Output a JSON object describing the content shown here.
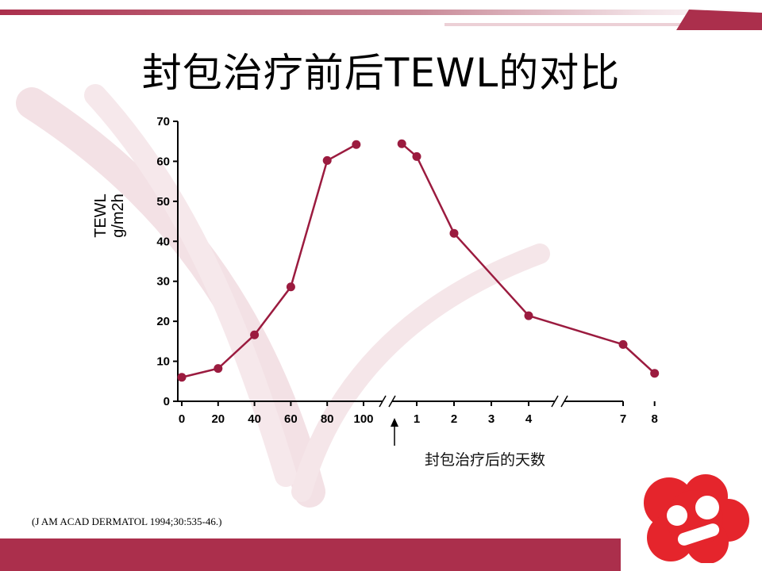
{
  "slide": {
    "title": "封包治疗前后TEWL的对比",
    "citation": "(J AM ACAD DERMATOL 1994;30:535-46.)",
    "x_note": "封包治疗后的天数",
    "accent_color": "#ab2f4c",
    "line_color": "#9b1b3f",
    "logo_color": "#e5252c",
    "logo_icon": "red-cloud-face-logo"
  },
  "chart_data": {
    "type": "line",
    "ylabel_lines": [
      "TEWL",
      "g/m2h"
    ],
    "ylim": [
      0,
      70
    ],
    "y_ticks": [
      "0",
      "10",
      "20",
      "30",
      "40",
      "50",
      "60",
      "70"
    ],
    "grid": false,
    "legend": "none",
    "segments": [
      {
        "x_ticks": [
          "0",
          "20",
          "40",
          "60",
          "80",
          "100"
        ],
        "x": [
          0,
          20,
          40,
          60,
          80,
          96
        ],
        "y": [
          6,
          8.2,
          16.6,
          28.6,
          60.2,
          64.2
        ]
      },
      {
        "x_ticks": [
          "1",
          "2",
          "3",
          "4",
          "7",
          "8"
        ],
        "x": [
          0.6,
          1,
          2,
          4,
          7,
          8
        ],
        "y": [
          64.4,
          61.2,
          42,
          21.4,
          14.2,
          7
        ]
      }
    ]
  }
}
